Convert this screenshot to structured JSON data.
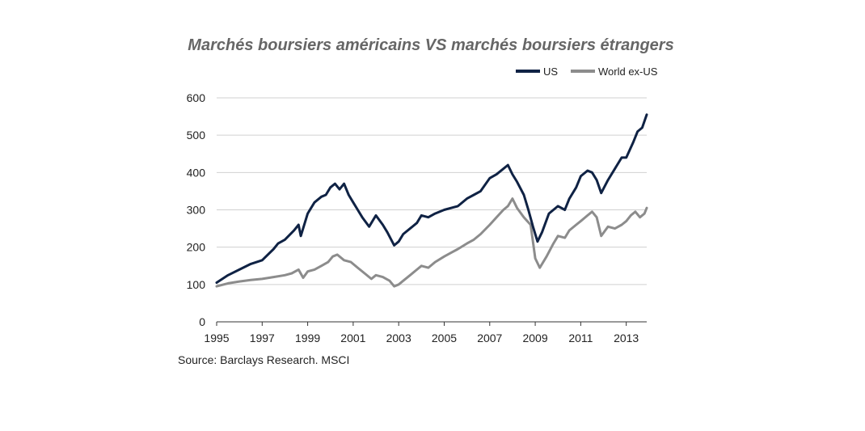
{
  "chart_data": {
    "type": "line",
    "title": "Marchés boursiers américains VS marchés boursiers  étrangers",
    "source": "Source: Barclays Research. MSCI",
    "xlabel": "",
    "ylabel": "",
    "xlim": [
      1995,
      2013.9
    ],
    "ylim": [
      0,
      600
    ],
    "x_ticks": [
      "1995",
      "1997",
      "1999",
      "2001",
      "2003",
      "2005",
      "2007",
      "2009",
      "2011",
      "2013"
    ],
    "y_ticks": [
      "0",
      "100",
      "200",
      "300",
      "400",
      "500",
      "600"
    ],
    "grid": true,
    "legend_position": "top-right",
    "series": [
      {
        "name": "US",
        "color": "#0f2244",
        "x": [
          1995.0,
          1995.5,
          1996.0,
          1996.5,
          1997.0,
          1997.5,
          1997.7,
          1998.0,
          1998.4,
          1998.6,
          1998.7,
          1999.0,
          1999.3,
          1999.6,
          1999.8,
          2000.0,
          2000.2,
          2000.4,
          2000.6,
          2000.8,
          2001.0,
          2001.2,
          2001.4,
          2001.7,
          2002.0,
          2002.3,
          2002.5,
          2002.8,
          2003.0,
          2003.2,
          2003.5,
          2003.8,
          2004.0,
          2004.3,
          2004.6,
          2005.0,
          2005.3,
          2005.6,
          2006.0,
          2006.3,
          2006.6,
          2007.0,
          2007.3,
          2007.6,
          2007.8,
          2008.0,
          2008.2,
          2008.5,
          2008.7,
          2008.9,
          2009.1,
          2009.3,
          2009.6,
          2010.0,
          2010.3,
          2010.5,
          2010.8,
          2011.0,
          2011.3,
          2011.5,
          2011.7,
          2011.9,
          2012.2,
          2012.5,
          2012.8,
          2013.0,
          2013.3,
          2013.5,
          2013.7,
          2013.9
        ],
        "values": [
          105,
          125,
          140,
          155,
          165,
          195,
          210,
          220,
          245,
          260,
          230,
          290,
          320,
          335,
          340,
          360,
          370,
          355,
          370,
          340,
          320,
          300,
          280,
          255,
          285,
          260,
          240,
          205,
          215,
          235,
          250,
          265,
          285,
          280,
          290,
          300,
          305,
          310,
          330,
          340,
          350,
          385,
          395,
          410,
          420,
          395,
          375,
          340,
          300,
          255,
          215,
          240,
          290,
          310,
          300,
          330,
          360,
          390,
          405,
          400,
          380,
          345,
          380,
          410,
          440,
          440,
          480,
          510,
          520,
          555
        ]
      },
      {
        "name": "World ex-US",
        "color": "#8c8c8c",
        "x": [
          1995.0,
          1995.5,
          1996.0,
          1996.5,
          1997.0,
          1997.5,
          1998.0,
          1998.3,
          1998.6,
          1998.8,
          1999.0,
          1999.3,
          1999.6,
          1999.9,
          2000.1,
          2000.3,
          2000.6,
          2000.9,
          2001.2,
          2001.5,
          2001.8,
          2002.0,
          2002.3,
          2002.6,
          2002.8,
          2003.0,
          2003.2,
          2003.5,
          2003.8,
          2004.0,
          2004.3,
          2004.6,
          2005.0,
          2005.3,
          2005.6,
          2006.0,
          2006.3,
          2006.6,
          2007.0,
          2007.3,
          2007.6,
          2007.8,
          2008.0,
          2008.2,
          2008.5,
          2008.8,
          2009.0,
          2009.2,
          2009.5,
          2009.8,
          2010.0,
          2010.3,
          2010.5,
          2010.8,
          2011.0,
          2011.3,
          2011.5,
          2011.7,
          2011.9,
          2012.2,
          2012.5,
          2012.8,
          2013.0,
          2013.2,
          2013.4,
          2013.6,
          2013.8,
          2013.9
        ],
        "values": [
          95,
          103,
          108,
          112,
          115,
          120,
          125,
          130,
          140,
          118,
          135,
          140,
          150,
          160,
          175,
          180,
          165,
          160,
          145,
          130,
          115,
          125,
          120,
          110,
          95,
          100,
          110,
          125,
          140,
          150,
          145,
          160,
          175,
          185,
          195,
          210,
          220,
          235,
          260,
          280,
          300,
          310,
          330,
          305,
          280,
          260,
          170,
          145,
          175,
          210,
          230,
          225,
          245,
          260,
          270,
          285,
          295,
          280,
          230,
          255,
          250,
          260,
          270,
          285,
          295,
          280,
          290,
          305
        ]
      }
    ]
  }
}
